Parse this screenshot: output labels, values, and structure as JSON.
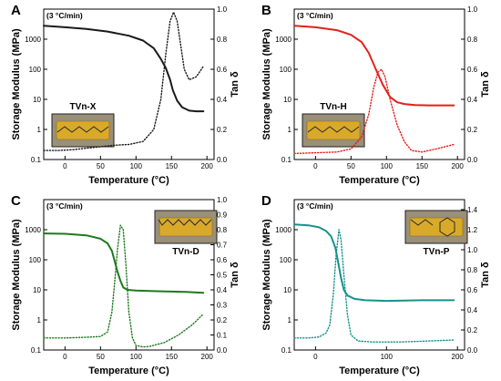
{
  "chart_data": [
    {
      "type": "line",
      "panel_label": "A",
      "heating_rate": "(3 °C/min)",
      "sample": "TVn-X",
      "xlabel": "Temperature (°C)",
      "ylabel": "Storage Modulus (MPa)",
      "y2label": "Tan δ",
      "xlim": [
        -30,
        210
      ],
      "ylim": [
        0.1,
        10000
      ],
      "y_scale": "log",
      "y2lim": [
        0,
        1.0
      ],
      "x_ticks": [
        "0",
        "50",
        "100",
        "150",
        "200"
      ],
      "y_ticks": [
        "0.1",
        "1",
        "10",
        "100",
        "1000"
      ],
      "y2_ticks": [
        "0.0",
        "0.2",
        "0.4",
        "0.6",
        "0.8",
        "1.0"
      ],
      "color": "#1a1a1a",
      "series": [
        {
          "axis": "left",
          "style": "solid",
          "x": [
            -30,
            0,
            30,
            60,
            90,
            110,
            125,
            135,
            142,
            148,
            152,
            158,
            165,
            175,
            185,
            195
          ],
          "y": [
            2800,
            2500,
            2200,
            1800,
            1300,
            900,
            500,
            220,
            110,
            45,
            20,
            9,
            5.5,
            4.2,
            4.0,
            4.0
          ]
        },
        {
          "axis": "right",
          "style": "dotted",
          "x": [
            -30,
            -10,
            10,
            30,
            50,
            70,
            90,
            110,
            125,
            135,
            142,
            148,
            153,
            158,
            163,
            168,
            175,
            185,
            195
          ],
          "y": [
            0.06,
            0.06,
            0.065,
            0.075,
            0.085,
            0.095,
            0.1,
            0.12,
            0.2,
            0.4,
            0.7,
            0.92,
            0.98,
            0.92,
            0.76,
            0.6,
            0.53,
            0.55,
            0.62
          ]
        }
      ]
    },
    {
      "type": "line",
      "panel_label": "B",
      "heating_rate": "(3 °C/min)",
      "sample": "TVn-H",
      "xlabel": "Temperature (°C)",
      "ylabel": "Storage Modulus (MPa)",
      "y2label": "Tan δ",
      "xlim": [
        -30,
        210
      ],
      "ylim": [
        0.1,
        10000
      ],
      "y_scale": "log",
      "y2lim": [
        0,
        1.0
      ],
      "x_ticks": [
        "0",
        "50",
        "100",
        "150",
        "200"
      ],
      "y_ticks": [
        "0.1",
        "1",
        "10",
        "100",
        "1000"
      ],
      "y2_ticks": [
        "0.0",
        "0.2",
        "0.4",
        "0.6",
        "0.8",
        "1.0"
      ],
      "color": "#e3201b",
      "series": [
        {
          "axis": "left",
          "style": "solid",
          "x": [
            -30,
            0,
            30,
            50,
            65,
            75,
            85,
            95,
            105,
            115,
            125,
            140,
            160,
            180,
            195
          ],
          "y": [
            2800,
            2500,
            2000,
            1400,
            800,
            350,
            100,
            30,
            12,
            8,
            7,
            6.5,
            6.3,
            6.3,
            6.3
          ]
        },
        {
          "axis": "right",
          "style": "dotted",
          "x": [
            -30,
            0,
            30,
            50,
            65,
            75,
            82,
            88,
            93,
            98,
            105,
            115,
            125,
            135,
            150,
            170,
            195
          ],
          "y": [
            0.04,
            0.045,
            0.05,
            0.07,
            0.15,
            0.3,
            0.48,
            0.58,
            0.6,
            0.55,
            0.4,
            0.23,
            0.12,
            0.06,
            0.05,
            0.07,
            0.1
          ]
        }
      ]
    },
    {
      "type": "line",
      "panel_label": "C",
      "heating_rate": "(3 °C/min)",
      "sample": "TVn-D",
      "xlabel": "Temperature (°C)",
      "ylabel": "Storage Modulus (MPa)",
      "y2label": "Tan δ",
      "xlim": [
        -30,
        210
      ],
      "ylim": [
        0.1,
        10000
      ],
      "y_scale": "log",
      "y2lim": [
        0,
        1.0
      ],
      "x_ticks": [
        "0",
        "50",
        "100",
        "150",
        "200"
      ],
      "y_ticks": [
        "0.1",
        "1",
        "10",
        "100",
        "1000"
      ],
      "y2_ticks": [
        "0.0",
        "0.1",
        "0.2",
        "0.3",
        "0.4",
        "0.5",
        "0.6",
        "0.7",
        "0.8",
        "0.9",
        "1.0"
      ],
      "color": "#1e7a1e",
      "series": [
        {
          "axis": "left",
          "style": "solid",
          "x": [
            -30,
            0,
            30,
            50,
            60,
            66,
            70,
            74,
            78,
            82,
            88,
            100,
            130,
            170,
            195
          ],
          "y": [
            750,
            730,
            650,
            500,
            350,
            200,
            90,
            40,
            20,
            12,
            10,
            9.5,
            9,
            8.5,
            8
          ]
        },
        {
          "axis": "right",
          "style": "dotted",
          "x": [
            -30,
            0,
            30,
            50,
            60,
            66,
            70,
            74,
            78,
            82,
            86,
            90,
            95,
            100,
            110,
            120,
            140,
            160,
            180,
            195
          ],
          "y": [
            0.08,
            0.08,
            0.085,
            0.09,
            0.12,
            0.25,
            0.45,
            0.67,
            0.83,
            0.8,
            0.55,
            0.25,
            0.08,
            0.03,
            0.02,
            0.025,
            0.05,
            0.1,
            0.17,
            0.24
          ]
        }
      ]
    },
    {
      "type": "line",
      "panel_label": "D",
      "heating_rate": "(3 °C/min)",
      "sample": "TVn-P",
      "xlabel": "Temperature (°C)",
      "ylabel": "Storage Modulus (MPa)",
      "y2label": "Tan δ",
      "xlim": [
        -30,
        210
      ],
      "ylim": [
        0.1,
        10000
      ],
      "y_scale": "log",
      "y2lim": [
        0,
        1.5
      ],
      "x_ticks": [
        "0",
        "100",
        "200"
      ],
      "y_ticks": [
        "0.1",
        "1",
        "10",
        "100",
        "1000"
      ],
      "y2_ticks": [
        "0.0",
        "0.2",
        "0.4",
        "0.6",
        "0.8",
        "1.0",
        "1.2",
        "1.4"
      ],
      "color": "#17918c",
      "series": [
        {
          "axis": "left",
          "style": "solid",
          "x": [
            -30,
            -10,
            5,
            15,
            22,
            28,
            32,
            36,
            40,
            45,
            55,
            70,
            100,
            150,
            195
          ],
          "y": [
            1500,
            1400,
            1200,
            900,
            600,
            250,
            80,
            25,
            10,
            6.5,
            5,
            4.5,
            4.3,
            4.5,
            4.5
          ]
        },
        {
          "axis": "right",
          "style": "dotted",
          "x": [
            -30,
            -10,
            5,
            15,
            20,
            25,
            29,
            33,
            36,
            40,
            45,
            50,
            60,
            80,
            120,
            160,
            195
          ],
          "y": [
            0.12,
            0.12,
            0.13,
            0.17,
            0.25,
            0.55,
            0.95,
            1.2,
            1.1,
            0.75,
            0.35,
            0.15,
            0.09,
            0.08,
            0.08,
            0.09,
            0.1
          ]
        }
      ]
    }
  ],
  "insets": [
    {
      "style": "bar"
    },
    {
      "style": "bar"
    },
    {
      "style": "structure"
    },
    {
      "style": "ring"
    }
  ]
}
